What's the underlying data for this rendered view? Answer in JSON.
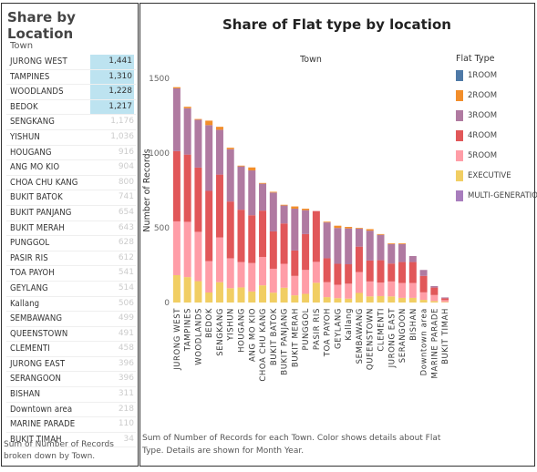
{
  "left_panel": {
    "title": "Share by Location",
    "column_header": "Town",
    "caption": "Sum of Number of Records broken down by Town.",
    "rows": [
      {
        "town": "JURONG WEST",
        "value": "1,441",
        "highlight": true
      },
      {
        "town": "TAMPINES",
        "value": "1,310",
        "highlight": true
      },
      {
        "town": "WOODLANDS",
        "value": "1,228",
        "highlight": true
      },
      {
        "town": "BEDOK",
        "value": "1,217",
        "highlight": true
      },
      {
        "town": "SENGKANG",
        "value": "1,176",
        "highlight": false
      },
      {
        "town": "YISHUN",
        "value": "1,036",
        "highlight": false
      },
      {
        "town": "HOUGANG",
        "value": "916",
        "highlight": false
      },
      {
        "town": "ANG MO KIO",
        "value": "904",
        "highlight": false
      },
      {
        "town": "CHOA CHU KANG",
        "value": "800",
        "highlight": false
      },
      {
        "town": "BUKIT BATOK",
        "value": "741",
        "highlight": false
      },
      {
        "town": "BUKIT PANJANG",
        "value": "654",
        "highlight": false
      },
      {
        "town": "BUKIT MERAH",
        "value": "643",
        "highlight": false
      },
      {
        "town": "PUNGGOL",
        "value": "628",
        "highlight": false
      },
      {
        "town": "PASIR RIS",
        "value": "612",
        "highlight": false
      },
      {
        "town": "TOA PAYOH",
        "value": "541",
        "highlight": false
      },
      {
        "town": "GEYLANG",
        "value": "514",
        "highlight": false
      },
      {
        "town": "Kallang",
        "value": "506",
        "highlight": false
      },
      {
        "town": "SEMBAWANG",
        "value": "499",
        "highlight": false
      },
      {
        "town": "QUEENSTOWN",
        "value": "491",
        "highlight": false
      },
      {
        "town": "CLEMENTI",
        "value": "458",
        "highlight": false
      },
      {
        "town": "JURONG EAST",
        "value": "396",
        "highlight": false
      },
      {
        "town": "SERANGOON",
        "value": "396",
        "highlight": false
      },
      {
        "town": "BISHAN",
        "value": "311",
        "highlight": false
      },
      {
        "town": "Downtown area",
        "value": "218",
        "highlight": false
      },
      {
        "town": "MARINE PARADE",
        "value": "110",
        "highlight": false
      },
      {
        "town": "BUKIT TIMAH",
        "value": "34",
        "highlight": false
      }
    ]
  },
  "right_panel": {
    "caption": "Sum of Number of Records for each Town. Color shows details about Flat Type. Details are shown for Month Year."
  },
  "chart_data": {
    "type": "bar",
    "stacked": true,
    "title": "Share of Flat type by location",
    "xlabel": "Town",
    "ylabel": "Number of Records",
    "ylim": [
      0,
      1500
    ],
    "yticks": [
      "0",
      "500",
      "1000",
      "1500"
    ],
    "grid": false,
    "legend_title": "Flat Type",
    "legend_position": "right",
    "categories": [
      "JURONG WEST",
      "TAMPINES",
      "WOODLANDS",
      "BEDOK",
      "SENGKANG",
      "YISHUN",
      "HOUGANG",
      "ANG MO KIO",
      "CHOA CHU KANG",
      "BUKIT BATOK",
      "BUKIT PANJANG",
      "BUKIT MERAH",
      "PUNGGOL",
      "PASIR RIS",
      "TOA PAYOH",
      "GEYLANG",
      "Kallang",
      "SEMBAWANG",
      "QUEENSTOWN",
      "CLEMENTI",
      "JURONG EAST",
      "SERANGOON",
      "BISHAN",
      "Downtown area",
      "MARINE PARADE",
      "BUKIT TIMAH"
    ],
    "series": [
      {
        "name": "1ROOM",
        "color": "#4e79a7",
        "values": [
          0,
          0,
          0,
          0,
          0,
          0,
          0,
          0,
          0,
          0,
          0,
          0,
          0,
          0,
          0,
          0,
          0,
          0,
          0,
          0,
          0,
          0,
          0,
          0,
          0,
          0
        ]
      },
      {
        "name": "2ROOM",
        "color": "#f28e2b",
        "values": [
          8,
          10,
          5,
          30,
          20,
          10,
          5,
          20,
          5,
          5,
          5,
          15,
          10,
          0,
          5,
          15,
          10,
          5,
          10,
          5,
          5,
          5,
          0,
          0,
          0,
          0
        ]
      },
      {
        "name": "3ROOM",
        "color": "#b07aa1",
        "values": [
          420,
          310,
          320,
          440,
          300,
          350,
          290,
          300,
          180,
          260,
          120,
          280,
          160,
          0,
          240,
          240,
          240,
          120,
          200,
          170,
          130,
          120,
          40,
          40,
          10,
          6
        ]
      },
      {
        "name": "4ROOM",
        "color": "#e15759",
        "values": [
          470,
          450,
          430,
          470,
          420,
          380,
          350,
          320,
          310,
          250,
          270,
          170,
          240,
          340,
          160,
          140,
          130,
          170,
          140,
          150,
          120,
          140,
          140,
          110,
          50,
          12
        ]
      },
      {
        "name": "5ROOM",
        "color": "#ff9da7",
        "values": [
          360,
          370,
          330,
          210,
          300,
          200,
          170,
          190,
          190,
          160,
          160,
          130,
          160,
          140,
          100,
          90,
          100,
          140,
          100,
          90,
          100,
          100,
          100,
          50,
          40,
          12
        ]
      },
      {
        "name": "EXECUTIVE",
        "color": "#f1ce63",
        "values": [
          183,
          170,
          143,
          67,
          136,
          96,
          101,
          74,
          115,
          66,
          99,
          48,
          58,
          132,
          36,
          29,
          26,
          64,
          41,
          43,
          41,
          31,
          31,
          18,
          10,
          4
        ]
      },
      {
        "name": "MULTI-GENERATION",
        "color": "#a87dbd",
        "values": [
          0,
          0,
          0,
          0,
          0,
          0,
          0,
          0,
          0,
          0,
          0,
          0,
          0,
          0,
          0,
          0,
          0,
          0,
          0,
          0,
          0,
          0,
          0,
          0,
          0,
          0
        ]
      }
    ]
  }
}
